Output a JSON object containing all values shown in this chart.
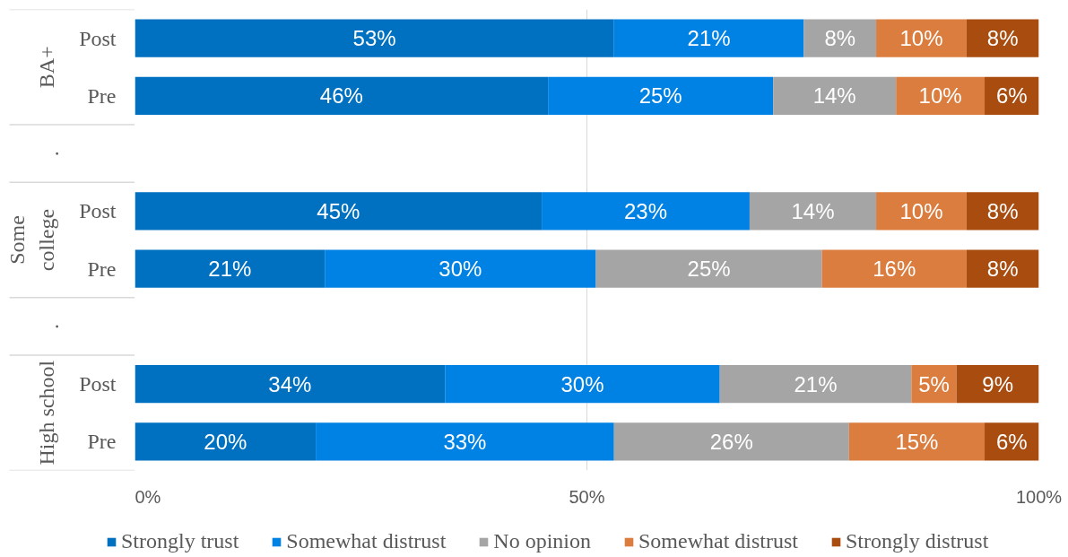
{
  "chart_data": {
    "type": "bar",
    "orientation": "horizontal",
    "stacked": true,
    "categories": [
      "Post",
      "Pre",
      null,
      "Post",
      "Pre",
      null,
      "Post",
      "Pre"
    ],
    "annotations": [
      "BA+",
      ".",
      "Some college",
      ".",
      "High school"
    ],
    "series": [
      {
        "name": "Strongly trust",
        "color": "#0070c0",
        "values": [
          53,
          45.7,
          null,
          45,
          21,
          null,
          34.3,
          20
        ],
        "value_labels": [
          "53%",
          "46%",
          null,
          "45%",
          "21%",
          null,
          "34%",
          "20%"
        ]
      },
      {
        "name": "Somewhat distrust",
        "color": "#0082e4",
        "values": [
          21,
          24.9,
          null,
          23,
          30,
          null,
          30.4,
          33
        ],
        "value_labels": [
          "21%",
          "25%",
          null,
          "23%",
          "30%",
          null,
          "30%",
          "33%"
        ]
      },
      {
        "name": "No opinion",
        "color": "#a5a5a5",
        "values": [
          8,
          13.6,
          null,
          14,
          25,
          null,
          21.2,
          26
        ],
        "value_labels": [
          "8%",
          "14%",
          null,
          "14%",
          "25%",
          null,
          "21%",
          "26%"
        ]
      },
      {
        "name": "Somewhat distrust",
        "color": "#db7d3f",
        "values": [
          10,
          9.8,
          null,
          10,
          16,
          null,
          5.0,
          15
        ],
        "value_labels": [
          "10%",
          "10%",
          null,
          "10%",
          "16%",
          null,
          "5%",
          "15%"
        ]
      },
      {
        "name": "Strongly distrust",
        "color": "#a94c10",
        "values": [
          8,
          6.0,
          null,
          8,
          8,
          null,
          9.1,
          6
        ],
        "value_labels": [
          "8%",
          "6%",
          null,
          "8%",
          "8%",
          null,
          "9%",
          "6%"
        ]
      }
    ],
    "xlim": [
      0,
      100
    ],
    "xticks": [
      {
        "value": 0,
        "label": "0%"
      },
      {
        "value": 50,
        "label": "50%"
      },
      {
        "value": 100,
        "label": "100%"
      }
    ],
    "grid": "x",
    "legend": "bottom"
  }
}
